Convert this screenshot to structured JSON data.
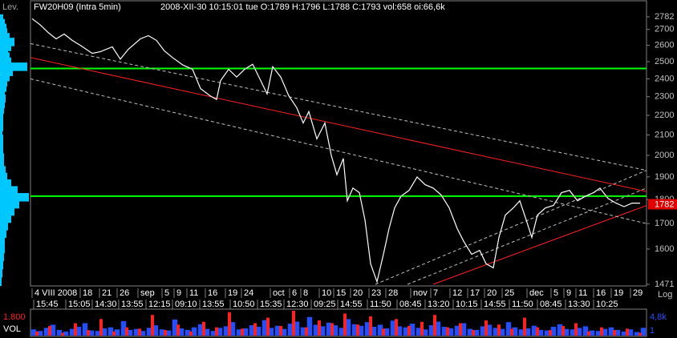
{
  "chart_data": {
    "type": "line",
    "title": "FW20H09 (Intra 5min)",
    "subtitle": "2008-XII-30 10:15:01 tue   O:1789 H:1796 L:1788 C:1793 vol:658 oi:66,6k",
    "profile_label": "Lev.",
    "scale_label": "Log",
    "log_scale": true,
    "xlim": [
      0,
      768
    ],
    "ylim": [
      1471,
      2782
    ],
    "yticks": [
      1471,
      1600,
      1700,
      1800,
      1900,
      2000,
      2100,
      2200,
      2300,
      2400,
      2500,
      2600,
      2700,
      2782
    ],
    "x": [
      2,
      12,
      22,
      32,
      42,
      52,
      62,
      77,
      87,
      102,
      112,
      122,
      137,
      147,
      157,
      167,
      177,
      190,
      202,
      212,
      224,
      232,
      237,
      247,
      257,
      267,
      277,
      287,
      295,
      302,
      312,
      322,
      332,
      340,
      347,
      357,
      367,
      375,
      382,
      390,
      395,
      402,
      410,
      417,
      424,
      432,
      440,
      447,
      454,
      462,
      472,
      482,
      492,
      502,
      512,
      522,
      532,
      540,
      550,
      560,
      568,
      577,
      584,
      592,
      602,
      610,
      618,
      625,
      632,
      642,
      652,
      662,
      672,
      682,
      692,
      702,
      710,
      720,
      730,
      740,
      750,
      760
    ],
    "series": [
      {
        "color": "#ffffff",
        "values": [
          2770,
          2730,
          2680,
          2640,
          2670,
          2630,
          2600,
          2550,
          2560,
          2590,
          2515,
          2575,
          2640,
          2660,
          2630,
          2565,
          2525,
          2480,
          2455,
          2345,
          2305,
          2285,
          2390,
          2455,
          2410,
          2455,
          2485,
          2390,
          2315,
          2470,
          2410,
          2305,
          2240,
          2160,
          2220,
          2080,
          2160,
          2000,
          1910,
          1985,
          1795,
          1850,
          1830,
          1715,
          1545,
          1480,
          1580,
          1680,
          1765,
          1815,
          1840,
          1900,
          1865,
          1850,
          1820,
          1765,
          1680,
          1630,
          1580,
          1595,
          1545,
          1530,
          1645,
          1735,
          1765,
          1795,
          1715,
          1645,
          1735,
          1765,
          1775,
          1830,
          1840,
          1795,
          1815,
          1830,
          1850,
          1805,
          1785,
          1770,
          1785,
          1785
        ]
      }
    ],
    "last_value": 1782,
    "last_color": "#e00000",
    "xticks_top": [
      {
        "value": 2,
        "label": "4 VIII 2008"
      },
      {
        "value": 62,
        "label": "18"
      },
      {
        "value": 86,
        "label": "21"
      },
      {
        "value": 108,
        "label": "26"
      },
      {
        "value": 134,
        "label": "sep"
      },
      {
        "value": 164,
        "label": "5"
      },
      {
        "value": 179,
        "label": "9"
      },
      {
        "value": 195,
        "label": "11"
      },
      {
        "value": 218,
        "label": "16"
      },
      {
        "value": 243,
        "label": "19"
      },
      {
        "value": 263,
        "label": "24"
      },
      {
        "value": 299,
        "label": "oct"
      },
      {
        "value": 323,
        "label": "6"
      },
      {
        "value": 337,
        "label": "8"
      },
      {
        "value": 360,
        "label": "10"
      },
      {
        "value": 378,
        "label": "15"
      },
      {
        "value": 399,
        "label": "20"
      },
      {
        "value": 422,
        "label": "23"
      },
      {
        "value": 443,
        "label": "28"
      },
      {
        "value": 474,
        "label": "nov"
      },
      {
        "value": 499,
        "label": "7"
      },
      {
        "value": 523,
        "label": "12"
      },
      {
        "value": 545,
        "label": "17"
      },
      {
        "value": 566,
        "label": "20"
      },
      {
        "value": 588,
        "label": "25"
      },
      {
        "value": 619,
        "label": "dec"
      },
      {
        "value": 649,
        "label": "5"
      },
      {
        "value": 665,
        "label": "9"
      },
      {
        "value": 680,
        "label": "11"
      },
      {
        "value": 702,
        "label": "16"
      },
      {
        "value": 724,
        "label": "19"
      },
      {
        "value": 748,
        "label": "29"
      }
    ],
    "xticks_bottom": [
      {
        "value": 4,
        "label": "15:45"
      },
      {
        "value": 44,
        "label": "15:05"
      },
      {
        "value": 77,
        "label": "14:30"
      },
      {
        "value": 110,
        "label": "13:55"
      },
      {
        "value": 144,
        "label": "12:15"
      },
      {
        "value": 177,
        "label": "09:10"
      },
      {
        "value": 211,
        "label": "13:55"
      },
      {
        "value": 249,
        "label": "10:50"
      },
      {
        "value": 283,
        "label": "15:35"
      },
      {
        "value": 316,
        "label": "12:30"
      },
      {
        "value": 350,
        "label": "09:25"
      },
      {
        "value": 383,
        "label": "14:55"
      },
      {
        "value": 420,
        "label": "11:50"
      },
      {
        "value": 457,
        "label": "08:45"
      },
      {
        "value": 492,
        "label": "13:20"
      },
      {
        "value": 527,
        "label": "10:15"
      },
      {
        "value": 562,
        "label": "14:55"
      },
      {
        "value": 597,
        "label": "11:50"
      },
      {
        "value": 632,
        "label": "08:45"
      },
      {
        "value": 667,
        "label": "13:30"
      },
      {
        "value": 702,
        "label": "10:25"
      }
    ],
    "hlines": [
      {
        "value": 2460,
        "color": "#00ff00"
      },
      {
        "value": 1815,
        "color": "#00ff00"
      }
    ],
    "trendlines": [
      {
        "color": "#ff2020",
        "dash": false,
        "x": [
          0,
          768
        ],
        "y": [
          2525,
          1835
        ]
      },
      {
        "color": "#ff2020",
        "dash": false,
        "x": [
          502,
          768
        ],
        "y": [
          1471,
          1775
        ]
      },
      {
        "color": "#c0c0c0",
        "dash": true,
        "x": [
          0,
          768
        ],
        "y": [
          2610,
          1930
        ]
      },
      {
        "color": "#c0c0c0",
        "dash": true,
        "x": [
          0,
          768
        ],
        "y": [
          2400,
          1700
        ]
      },
      {
        "color": "#c0c0c0",
        "dash": true,
        "x": [
          430,
          768
        ],
        "y": [
          1471,
          1930
        ]
      },
      {
        "color": "#c0c0c0",
        "dash": true,
        "x": [
          470,
          768
        ],
        "y": [
          1471,
          1850
        ]
      }
    ],
    "profile": {
      "color": "#00c8ff",
      "xlim": [
        0,
        36
      ],
      "prices": [
        1480,
        1510,
        1540,
        1570,
        1600,
        1630,
        1660,
        1690,
        1720,
        1750,
        1780,
        1810,
        1840,
        1870,
        1900,
        1930,
        1960,
        1990,
        2020,
        2050,
        2080,
        2110,
        2140,
        2170,
        2200,
        2230,
        2260,
        2290,
        2320,
        2350,
        2380,
        2410,
        2440,
        2470,
        2500,
        2530,
        2560,
        2590,
        2620,
        2650,
        2680,
        2710,
        2740,
        2770
      ],
      "sizes": [
        2,
        3,
        4,
        5,
        6,
        6,
        8,
        10,
        14,
        18,
        24,
        36,
        22,
        14,
        9,
        7,
        5,
        5,
        4,
        4,
        4,
        3,
        4,
        4,
        4,
        5,
        6,
        7,
        6,
        8,
        9,
        12,
        16,
        34,
        14,
        12,
        10,
        14,
        18,
        12,
        9,
        8,
        6,
        4
      ]
    },
    "volume": {
      "label": "VOL",
      "series": [
        {
          "color": "#2050ff",
          "ylim": [
            1,
            4800
          ],
          "yticks": [
            {
              "value": 4800,
              "label": "4,8k"
            },
            1
          ],
          "values": [
            1200,
            900,
            1500,
            2100,
            1100,
            800,
            1300,
            1700,
            2400,
            1000,
            900,
            1400,
            1600,
            1200,
            2800,
            1100,
            1300,
            900,
            1500,
            2000,
            1200,
            1000,
            3100,
            1400,
            1100,
            1600,
            2200,
            1300,
            900,
            1500,
            1800,
            2600,
            1200,
            1400,
            2000,
            1700,
            3000,
            1500,
            1900,
            1300,
            2300,
            2700,
            1600,
            3600,
            2100,
            1800,
            2500,
            2000,
            1500,
            3200,
            2200,
            1900,
            2600,
            1700,
            2100,
            1400,
            2900,
            1800,
            1600,
            2300,
            1500,
            1200,
            2000,
            2700,
            1700,
            1400,
            1900,
            2400,
            1300,
            1100,
            1800,
            2100,
            1500,
            1300,
            2600,
            1600,
            1200,
            1400,
            1900,
            1100,
            1000,
            1700,
            2200,
            1300,
            1200,
            1500,
            1800,
            1000,
            900,
            1300,
            1600,
            1100,
            800,
            1200,
            700,
            1500
          ]
        },
        {
          "color": "#ff2020",
          "ylim": [
            0,
            1800
          ],
          "yticks": [
            {
              "value": 1800,
              "label": "1.800"
            }
          ],
          "values": [
            300,
            700,
            200,
            900,
            400,
            1200,
            300,
            600,
            500,
            1500,
            400,
            800,
            300,
            1000,
            600,
            1700,
            500,
            900,
            1300,
            700,
            1800,
            600,
            1100,
            900,
            1600,
            800,
            1400,
            500,
            1200,
            700,
            1000,
            1500,
            600,
            900,
            400,
            1100,
            800,
            500,
            1300,
            600,
            400,
            700,
            900,
            300,
            600,
            400,
            500,
            200
          ]
        }
      ]
    }
  }
}
